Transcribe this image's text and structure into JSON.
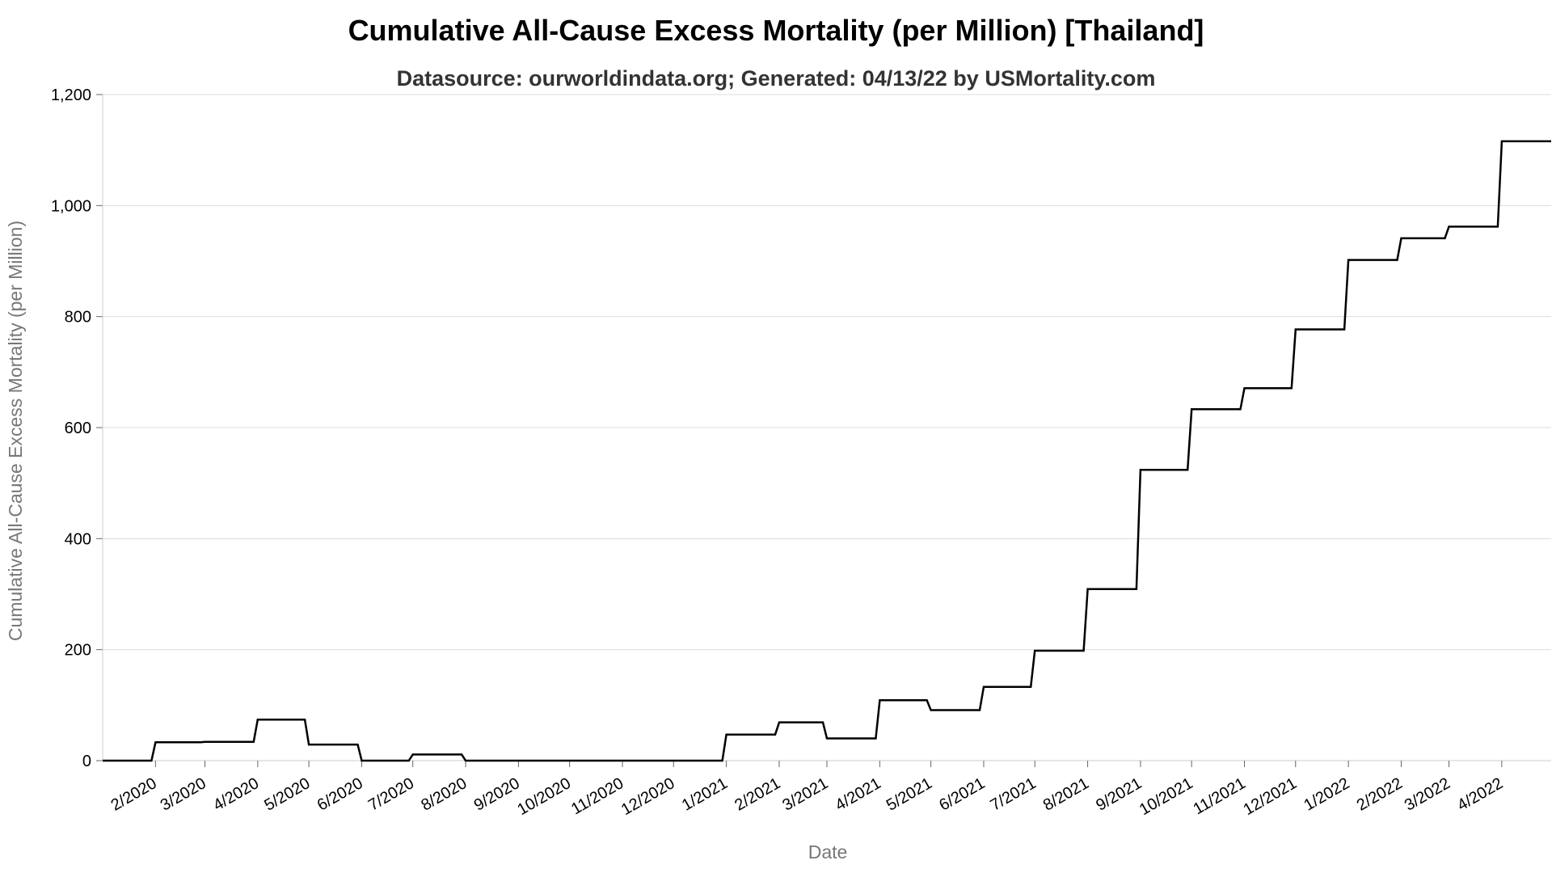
{
  "chart_data": {
    "type": "line",
    "title": "Cumulative All-Cause Excess Mortality (per Million) [Thailand]",
    "subtitle": "Datasource: ourworldindata.org; Generated: 04/13/22 by USMortality.com",
    "xlabel": "Date",
    "ylabel": "Cumulative All-Cause Excess Mortality (per Million)",
    "ylim": [
      0,
      1200
    ],
    "yticks": [
      0,
      200,
      400,
      600,
      800,
      1000,
      1200
    ],
    "ytick_labels": [
      "0",
      "200",
      "400",
      "600",
      "800",
      "1,000",
      "1,200"
    ],
    "grid": true,
    "step": true,
    "xlim": [
      "2020-01-01",
      "2022-04-30"
    ],
    "x_ticks": [
      "2020-02-01",
      "2020-03-01",
      "2020-04-01",
      "2020-05-01",
      "2020-06-01",
      "2020-07-01",
      "2020-08-01",
      "2020-09-01",
      "2020-10-01",
      "2020-11-01",
      "2020-12-01",
      "2021-01-01",
      "2021-02-01",
      "2021-03-01",
      "2021-04-01",
      "2021-05-01",
      "2021-06-01",
      "2021-07-01",
      "2021-08-01",
      "2021-09-01",
      "2021-10-01",
      "2021-11-01",
      "2021-12-01",
      "2022-01-01",
      "2022-02-01",
      "2022-03-01",
      "2022-04-01"
    ],
    "x_tick_labels": [
      "2/2020",
      "3/2020",
      "4/2020",
      "5/2020",
      "6/2020",
      "7/2020",
      "8/2020",
      "9/2020",
      "10/2020",
      "11/2020",
      "12/2020",
      "1/2021",
      "2/2021",
      "3/2021",
      "4/2021",
      "5/2021",
      "6/2021",
      "7/2021",
      "8/2021",
      "9/2021",
      "10/2021",
      "11/2021",
      "12/2021",
      "1/2022",
      "2/2022",
      "3/2022",
      "4/2022"
    ],
    "series": [
      {
        "x": [
          "2020-01-01",
          "2020-02-01",
          "2020-03-01",
          "2020-04-01",
          "2020-05-01",
          "2020-06-01",
          "2020-07-01",
          "2020-08-01",
          "2020-09-01",
          "2020-10-01",
          "2020-11-01",
          "2020-12-01",
          "2021-01-01",
          "2021-02-01",
          "2021-03-01",
          "2021-04-01",
          "2021-05-01",
          "2021-06-01",
          "2021-07-01",
          "2021-08-01",
          "2021-09-01",
          "2021-10-01",
          "2021-11-01",
          "2021-12-01",
          "2022-01-01",
          "2022-02-01",
          "2022-03-01",
          "2022-04-01",
          "2022-04-30"
        ],
        "values": [
          0,
          33,
          34,
          74,
          29,
          0,
          11,
          0,
          0,
          0,
          0,
          0,
          47,
          69,
          40,
          109,
          91,
          133,
          198,
          309,
          524,
          633,
          671,
          777,
          902,
          941,
          962,
          1116,
          1116
        ],
        "color": "#000000"
      }
    ]
  }
}
